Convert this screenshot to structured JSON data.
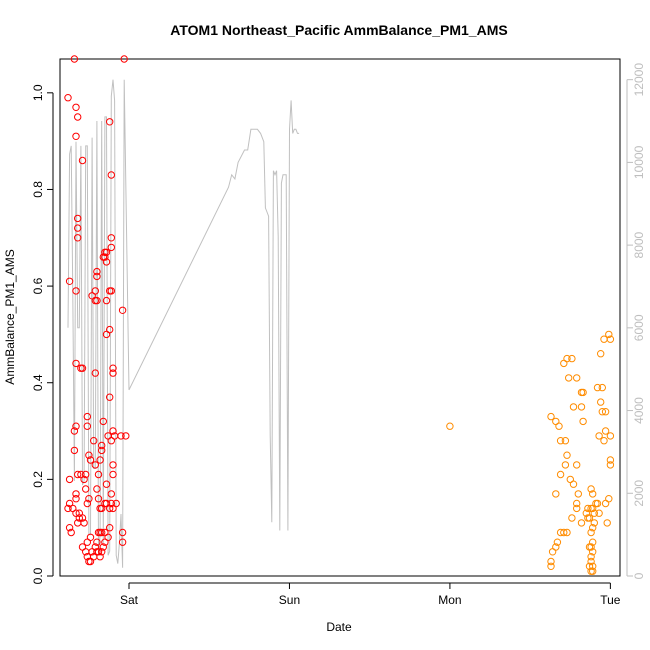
{
  "chart_data": {
    "type": "scatter",
    "title": "ATOM1 Northeast_Pacific AmmBalance_PM1_AMS",
    "xlabel": "Date",
    "ylabel": "AmmBalance_PM1_AMS",
    "x_ticks": [
      "Sat",
      "Sun",
      "Mon",
      "Tue"
    ],
    "y_ticks": [
      "0.0",
      "0.2",
      "0.4",
      "0.6",
      "0.8",
      "1.0"
    ],
    "y_right_ticks": [
      "0",
      "2000",
      "4000",
      "6000",
      "8000",
      "10000",
      "12000"
    ],
    "ylim": [
      0,
      1.07
    ],
    "y_right_lim": [
      0,
      12500
    ],
    "xlim": [
      -0.43,
      3.06
    ],
    "grid": false,
    "colors": {
      "series_a": "#ff0000",
      "series_b": "#ff8c00",
      "mid_point": "#ff8c00",
      "altitude_line": "#c0c0c0"
    },
    "series": [
      {
        "values": [
          [
            -0.38,
            0.99
          ],
          [
            -0.34,
            1.07
          ],
          [
            -0.33,
            0.97
          ],
          [
            -0.32,
            0.95
          ],
          [
            -0.33,
            0.91
          ],
          [
            -0.29,
            0.86
          ],
          [
            -0.32,
            0.74
          ],
          [
            -0.32,
            0.72
          ],
          [
            -0.32,
            0.7
          ],
          [
            -0.37,
            0.61
          ],
          [
            -0.33,
            0.59
          ],
          [
            -0.33,
            0.44
          ],
          [
            -0.3,
            0.43
          ],
          [
            -0.29,
            0.43
          ],
          [
            -0.33,
            0.31
          ],
          [
            -0.34,
            0.3
          ],
          [
            -0.34,
            0.26
          ],
          [
            -0.32,
            0.21
          ],
          [
            -0.37,
            0.2
          ],
          [
            -0.3,
            0.21
          ],
          [
            -0.27,
            0.21
          ],
          [
            -0.33,
            0.17
          ],
          [
            -0.33,
            0.16
          ],
          [
            -0.37,
            0.15
          ],
          [
            -0.35,
            0.14
          ],
          [
            -0.38,
            0.14
          ],
          [
            -0.33,
            0.13
          ],
          [
            -0.31,
            0.13
          ],
          [
            -0.29,
            0.12
          ],
          [
            -0.32,
            0.11
          ],
          [
            -0.31,
            0.12
          ],
          [
            -0.37,
            0.1
          ],
          [
            -0.36,
            0.09
          ],
          [
            -0.28,
            0.11
          ],
          [
            -0.26,
            0.15
          ],
          [
            -0.25,
            0.16
          ],
          [
            -0.26,
            0.33
          ],
          [
            -0.26,
            0.31
          ],
          [
            -0.25,
            0.25
          ],
          [
            -0.24,
            0.24
          ],
          [
            -0.28,
            0.2
          ],
          [
            -0.27,
            0.18
          ],
          [
            -0.29,
            0.06
          ],
          [
            -0.27,
            0.05
          ],
          [
            -0.26,
            0.07
          ],
          [
            -0.24,
            0.08
          ],
          [
            -0.26,
            0.04
          ],
          [
            -0.25,
            0.03
          ],
          [
            -0.24,
            0.03
          ],
          [
            -0.23,
            0.05
          ],
          [
            -0.22,
            0.04
          ],
          [
            -0.21,
            0.06
          ],
          [
            -0.2,
            0.07
          ],
          [
            -0.23,
            0.58
          ],
          [
            -0.2,
            0.63
          ],
          [
            -0.2,
            0.62
          ],
          [
            -0.21,
            0.59
          ],
          [
            -0.21,
            0.57
          ],
          [
            -0.2,
            0.57
          ],
          [
            -0.21,
            0.42
          ],
          [
            -0.22,
            0.28
          ],
          [
            -0.21,
            0.23
          ],
          [
            -0.19,
            0.21
          ],
          [
            -0.18,
            0.24
          ],
          [
            -0.17,
            0.26
          ],
          [
            -0.17,
            0.27
          ],
          [
            -0.2,
            0.18
          ],
          [
            -0.19,
            0.16
          ],
          [
            -0.18,
            0.14
          ],
          [
            -0.17,
            0.14
          ],
          [
            -0.19,
            0.09
          ],
          [
            -0.18,
            0.09
          ],
          [
            -0.2,
            0.05
          ],
          [
            -0.19,
            0.05
          ],
          [
            -0.18,
            0.04
          ],
          [
            -0.17,
            0.05
          ],
          [
            -0.17,
            0.09
          ],
          [
            -0.16,
            0.32
          ],
          [
            -0.15,
            0.15
          ],
          [
            -0.14,
            0.15
          ],
          [
            -0.14,
            0.19
          ],
          [
            -0.15,
            0.09
          ],
          [
            -0.16,
            0.06
          ],
          [
            -0.15,
            0.07
          ],
          [
            -0.16,
            0.66
          ],
          [
            -0.15,
            0.66
          ],
          [
            -0.15,
            0.67
          ],
          [
            -0.14,
            0.67
          ],
          [
            -0.14,
            0.65
          ],
          [
            -0.14,
            0.57
          ],
          [
            -0.12,
            0.59
          ],
          [
            -0.11,
            0.59
          ],
          [
            -0.14,
            0.5
          ],
          [
            -0.12,
            0.51
          ],
          [
            -0.11,
            0.68
          ],
          [
            -0.11,
            0.7
          ],
          [
            -0.12,
            0.94
          ],
          [
            -0.11,
            0.83
          ],
          [
            -0.1,
            0.43
          ],
          [
            -0.1,
            0.42
          ],
          [
            -0.12,
            0.37
          ],
          [
            -0.13,
            0.29
          ],
          [
            -0.11,
            0.28
          ],
          [
            -0.1,
            0.3
          ],
          [
            -0.09,
            0.29
          ],
          [
            -0.1,
            0.23
          ],
          [
            -0.1,
            0.21
          ],
          [
            -0.11,
            0.17
          ],
          [
            -0.11,
            0.15
          ],
          [
            -0.1,
            0.14
          ],
          [
            -0.08,
            0.15
          ],
          [
            -0.12,
            0.14
          ],
          [
            -0.12,
            0.1
          ],
          [
            -0.13,
            0.08
          ],
          [
            -0.03,
            1.07
          ],
          [
            -0.04,
            0.55
          ],
          [
            -0.02,
            0.29
          ],
          [
            -0.05,
            0.29
          ],
          [
            -0.04,
            0.09
          ],
          [
            -0.04,
            0.07
          ]
        ]
      },
      {
        "values": [
          [
            2.63,
            0.33
          ],
          [
            2.66,
            0.32
          ],
          [
            2.68,
            0.31
          ],
          [
            2.73,
            0.45
          ],
          [
            2.76,
            0.45
          ],
          [
            2.71,
            0.44
          ],
          [
            2.74,
            0.41
          ],
          [
            2.79,
            0.41
          ],
          [
            2.77,
            0.35
          ],
          [
            2.82,
            0.35
          ],
          [
            2.83,
            0.32
          ],
          [
            2.72,
            0.28
          ],
          [
            2.73,
            0.25
          ],
          [
            2.72,
            0.23
          ],
          [
            2.79,
            0.23
          ],
          [
            2.69,
            0.28
          ],
          [
            2.66,
            0.17
          ],
          [
            2.69,
            0.21
          ],
          [
            2.75,
            0.2
          ],
          [
            2.77,
            0.19
          ],
          [
            2.8,
            0.17
          ],
          [
            2.79,
            0.15
          ],
          [
            2.85,
            0.13
          ],
          [
            2.87,
            0.12
          ],
          [
            2.82,
            0.11
          ],
          [
            2.79,
            0.14
          ],
          [
            2.76,
            0.12
          ],
          [
            2.73,
            0.09
          ],
          [
            2.71,
            0.09
          ],
          [
            2.69,
            0.09
          ],
          [
            2.67,
            0.07
          ],
          [
            2.66,
            0.06
          ],
          [
            2.64,
            0.05
          ],
          [
            2.63,
            0.03
          ],
          [
            2.63,
            0.02
          ],
          [
            2.82,
            0.38
          ],
          [
            2.83,
            0.38
          ],
          [
            2.92,
            0.39
          ],
          [
            2.95,
            0.39
          ],
          [
            2.94,
            0.36
          ],
          [
            2.95,
            0.34
          ],
          [
            2.97,
            0.34
          ],
          [
            2.96,
            0.28
          ],
          [
            2.97,
            0.3
          ],
          [
            3.0,
            0.29
          ],
          [
            2.96,
            0.49
          ],
          [
            2.99,
            0.5
          ],
          [
            3.0,
            0.49
          ],
          [
            2.94,
            0.46
          ],
          [
            2.93,
            0.29
          ],
          [
            3.0,
            0.24
          ],
          [
            3.0,
            0.23
          ],
          [
            2.99,
            0.16
          ],
          [
            2.97,
            0.15
          ],
          [
            2.98,
            0.11
          ],
          [
            2.93,
            0.13
          ],
          [
            2.92,
            0.15
          ],
          [
            2.91,
            0.15
          ],
          [
            2.89,
            0.14
          ],
          [
            2.88,
            0.14
          ],
          [
            2.88,
            0.18
          ],
          [
            2.89,
            0.17
          ],
          [
            2.9,
            0.13
          ],
          [
            2.9,
            0.11
          ],
          [
            2.89,
            0.1
          ],
          [
            2.88,
            0.09
          ],
          [
            2.89,
            0.07
          ],
          [
            2.87,
            0.06
          ],
          [
            2.88,
            0.06
          ],
          [
            2.89,
            0.05
          ],
          [
            2.88,
            0.04
          ],
          [
            2.88,
            0.03
          ],
          [
            2.89,
            0.02
          ],
          [
            2.89,
            0.01
          ],
          [
            2.87,
            0.02
          ],
          [
            2.88,
            0.01
          ],
          [
            2.86,
            0.14
          ],
          [
            2.86,
            0.12
          ]
        ]
      },
      {
        "values": [
          [
            2.0,
            0.31
          ]
        ]
      }
    ],
    "altitude_line": {
      "x": [
        -0.38,
        -0.37,
        -0.36,
        -0.35,
        -0.34,
        -0.33,
        -0.32,
        -0.31,
        -0.3,
        -0.29,
        -0.28,
        -0.27,
        -0.26,
        -0.25,
        -0.24,
        -0.23,
        -0.22,
        -0.21,
        -0.2,
        -0.19,
        -0.18,
        -0.17,
        -0.16,
        -0.15,
        -0.14,
        -0.13,
        -0.12,
        -0.11,
        -0.1,
        -0.09,
        -0.08,
        -0.07,
        -0.06,
        -0.05,
        -0.04,
        -0.03,
        0.0,
        0.62,
        0.64,
        0.66,
        0.68,
        0.72,
        0.74,
        0.76,
        0.8,
        0.82,
        0.84,
        0.85,
        0.86,
        0.87,
        0.88,
        0.89,
        0.9,
        0.91,
        0.92,
        0.93,
        0.94,
        0.95,
        0.96,
        0.97,
        0.98,
        0.99,
        1.0,
        1.01,
        1.02,
        1.03,
        1.04,
        1.05,
        1.06
      ],
      "y": [
        6000,
        10200,
        10400,
        6800,
        2300,
        10500,
        6000,
        6000,
        10400,
        2200,
        2300,
        10400,
        10400,
        1000,
        1000,
        10600,
        2600,
        2600,
        11000,
        500,
        1000,
        11000,
        800,
        11100,
        11100,
        500,
        600,
        11600,
        12000,
        11500,
        500,
        300,
        800,
        1500,
        200,
        12000,
        4500,
        9400,
        9700,
        9600,
        10000,
        10300,
        10300,
        10800,
        10800,
        10700,
        10500,
        8900,
        8800,
        8700,
        3400,
        1300,
        9800,
        9700,
        9800,
        8200,
        1100,
        9500,
        9700,
        9700,
        9700,
        1100,
        10800,
        11500,
        10700,
        10800,
        10800,
        10700,
        10700
      ]
    }
  }
}
